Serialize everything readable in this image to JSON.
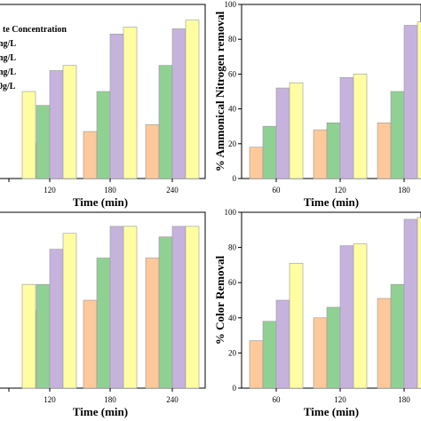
{
  "colors": {
    "orange": "#fdc99a",
    "green": "#8fd193",
    "purple": "#c6b3dd",
    "yellow": "#fefda2"
  },
  "legend": {
    "title": "te Concentration",
    "entries": [
      "ng/L",
      "ng/L",
      "ng/L",
      "0g/L"
    ]
  },
  "chart_data": [
    {
      "type": "bar",
      "xlabel": "Time (min)",
      "ylabel": "",
      "categories": [
        "",
        "120",
        "180",
        "240"
      ],
      "ylim": [
        0,
        100
      ],
      "series": [
        {
          "color": "orange",
          "values": [
            null,
            20,
            27,
            31
          ]
        },
        {
          "color": "green",
          "values": [
            null,
            42,
            50,
            65
          ]
        },
        {
          "color": "purple",
          "values": [
            null,
            62,
            83,
            86
          ]
        },
        {
          "color": "yellow",
          "values": [
            50,
            65,
            87,
            91
          ]
        }
      ]
    },
    {
      "type": "bar",
      "xlabel": "Time (min)",
      "ylabel": "% Ammonical Nitrogen removal",
      "categories": [
        "60",
        "120",
        "180"
      ],
      "yticks": [
        0,
        20,
        40,
        60,
        80,
        100
      ],
      "ylim": [
        0,
        100
      ],
      "series": [
        {
          "color": "orange",
          "values": [
            18,
            28,
            32
          ]
        },
        {
          "color": "green",
          "values": [
            30,
            32,
            50
          ]
        },
        {
          "color": "purple",
          "values": [
            52,
            58,
            88
          ]
        },
        {
          "color": "yellow",
          "values": [
            55,
            60,
            90
          ]
        }
      ]
    },
    {
      "type": "bar",
      "xlabel": "Time (min)",
      "ylabel": "",
      "categories": [
        "",
        "120",
        "180",
        "240"
      ],
      "ylim": [
        0,
        100
      ],
      "series": [
        {
          "color": "orange",
          "values": [
            null,
            44,
            50,
            74
          ]
        },
        {
          "color": "green",
          "values": [
            null,
            59,
            74,
            86
          ]
        },
        {
          "color": "purple",
          "values": [
            null,
            79,
            92,
            92
          ]
        },
        {
          "color": "yellow",
          "values": [
            59,
            88,
            92,
            92
          ]
        }
      ]
    },
    {
      "type": "bar",
      "xlabel": "Time (min)",
      "ylabel": "% Color Removal",
      "categories": [
        "60",
        "120",
        "180"
      ],
      "yticks": [
        0,
        20,
        40,
        60,
        80,
        100
      ],
      "ylim": [
        0,
        100
      ],
      "series": [
        {
          "color": "orange",
          "values": [
            27,
            40,
            51
          ]
        },
        {
          "color": "green",
          "values": [
            38,
            46,
            59
          ]
        },
        {
          "color": "purple",
          "values": [
            50,
            81,
            96
          ]
        },
        {
          "color": "yellow",
          "values": [
            71,
            82,
            97
          ]
        }
      ]
    }
  ]
}
